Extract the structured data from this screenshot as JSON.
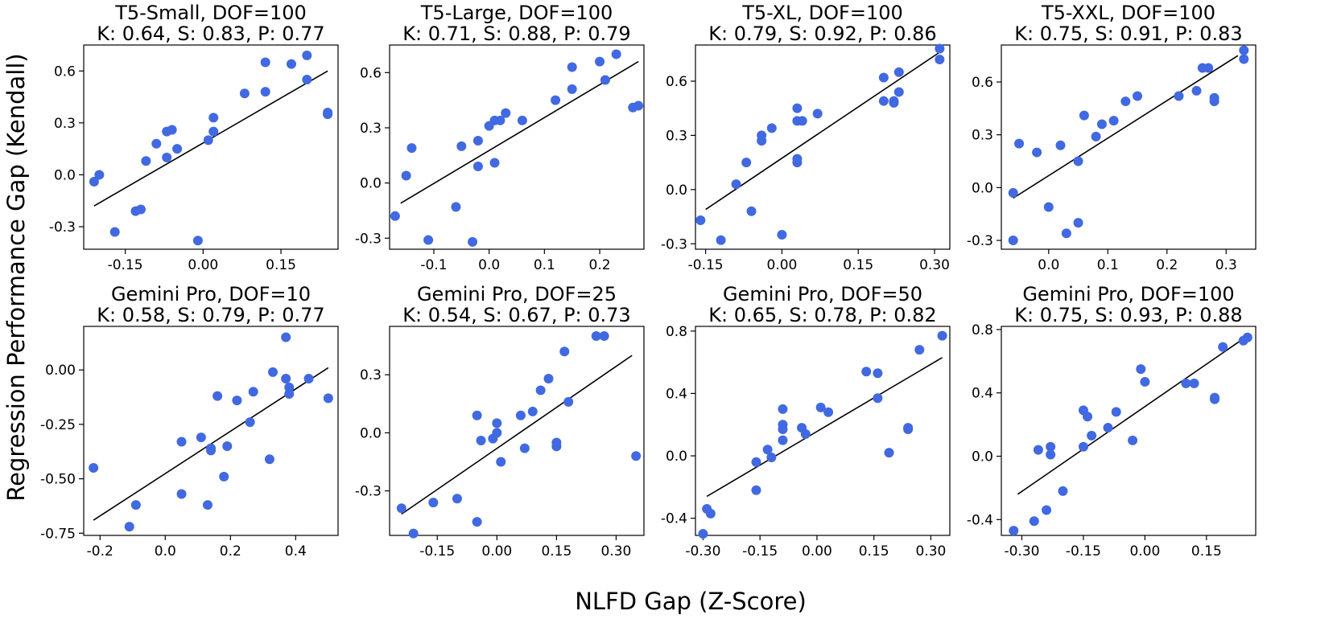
{
  "figure": {
    "ylabel": "Regression Performance Gap (Kendall)",
    "xlabel": "NLFD Gap (Z-Score)",
    "point_color": "#4169E1",
    "line_color": "#000000"
  },
  "chart_data": [
    {
      "type": "scatter",
      "title": "T5-Small, DOF=100",
      "subtitle": "K: 0.64, S: 0.83, P: 0.77",
      "xlim": [
        -0.23,
        0.26
      ],
      "ylim": [
        -0.43,
        0.75
      ],
      "xticks": [
        -0.15,
        0.0,
        0.15
      ],
      "xtick_labels": [
        "-0.15",
        "0.00",
        "0.15"
      ],
      "yticks": [
        -0.3,
        0.0,
        0.3,
        0.6
      ],
      "ytick_labels": [
        "-0.3",
        "0.0",
        "0.3",
        "0.6"
      ],
      "fit": [
        [
          -0.21,
          -0.18
        ],
        [
          0.24,
          0.6
        ]
      ],
      "points": [
        [
          -0.21,
          -0.04
        ],
        [
          -0.2,
          0.0
        ],
        [
          -0.17,
          -0.33
        ],
        [
          -0.12,
          -0.2
        ],
        [
          -0.11,
          0.08
        ],
        [
          -0.13,
          -0.21
        ],
        [
          -0.09,
          0.18
        ],
        [
          -0.07,
          0.1
        ],
        [
          -0.07,
          0.25
        ],
        [
          -0.06,
          0.26
        ],
        [
          -0.05,
          0.15
        ],
        [
          -0.01,
          -0.38
        ],
        [
          0.01,
          0.2
        ],
        [
          0.02,
          0.25
        ],
        [
          0.02,
          0.33
        ],
        [
          0.08,
          0.47
        ],
        [
          0.12,
          0.48
        ],
        [
          0.12,
          0.65
        ],
        [
          0.17,
          0.64
        ],
        [
          0.2,
          0.69
        ],
        [
          0.2,
          0.55
        ],
        [
          0.24,
          0.36
        ],
        [
          0.24,
          0.35
        ]
      ]
    },
    {
      "type": "scatter",
      "title": "T5-Large, DOF=100",
      "subtitle": "K: 0.71, S: 0.88, P: 0.79",
      "xlim": [
        -0.18,
        0.28
      ],
      "ylim": [
        -0.36,
        0.75
      ],
      "xticks": [
        -0.1,
        0.0,
        0.1,
        0.2
      ],
      "xtick_labels": [
        "-0.1",
        "0.0",
        "0.1",
        "0.2"
      ],
      "yticks": [
        -0.3,
        0.0,
        0.3,
        0.6
      ],
      "ytick_labels": [
        "-0.3",
        "0.0",
        "0.3",
        "0.6"
      ],
      "fit": [
        [
          -0.16,
          -0.11
        ],
        [
          0.27,
          0.66
        ]
      ],
      "points": [
        [
          -0.17,
          -0.18
        ],
        [
          -0.15,
          0.04
        ],
        [
          -0.14,
          0.19
        ],
        [
          -0.11,
          -0.31
        ],
        [
          -0.06,
          -0.13
        ],
        [
          -0.05,
          0.2
        ],
        [
          -0.03,
          -0.32
        ],
        [
          -0.02,
          0.23
        ],
        [
          -0.02,
          0.09
        ],
        [
          0.0,
          0.31
        ],
        [
          0.01,
          0.34
        ],
        [
          0.01,
          0.11
        ],
        [
          0.02,
          0.34
        ],
        [
          0.03,
          0.38
        ],
        [
          0.06,
          0.34
        ],
        [
          0.12,
          0.45
        ],
        [
          0.15,
          0.63
        ],
        [
          0.15,
          0.51
        ],
        [
          0.2,
          0.66
        ],
        [
          0.21,
          0.56
        ],
        [
          0.23,
          0.7
        ],
        [
          0.26,
          0.41
        ],
        [
          0.27,
          0.42
        ]
      ]
    },
    {
      "type": "scatter",
      "title": "T5-XL, DOF=100",
      "subtitle": "K: 0.79, S: 0.92, P: 0.86",
      "xlim": [
        -0.17,
        0.33
      ],
      "ylim": [
        -0.33,
        0.8
      ],
      "xticks": [
        -0.15,
        0.0,
        0.15,
        0.3
      ],
      "xtick_labels": [
        "-0.15",
        "0.00",
        "0.15",
        "0.30"
      ],
      "yticks": [
        -0.3,
        0.0,
        0.3,
        0.6
      ],
      "ytick_labels": [
        "-0.3",
        "0.0",
        "0.3",
        "0.6"
      ],
      "fit": [
        [
          -0.15,
          -0.11
        ],
        [
          0.31,
          0.76
        ]
      ],
      "points": [
        [
          -0.16,
          -0.17
        ],
        [
          -0.12,
          -0.28
        ],
        [
          -0.09,
          0.03
        ],
        [
          -0.07,
          0.15
        ],
        [
          -0.06,
          -0.12
        ],
        [
          -0.04,
          0.27
        ],
        [
          -0.04,
          0.3
        ],
        [
          -0.02,
          0.34
        ],
        [
          0.0,
          -0.25
        ],
        [
          0.03,
          0.15
        ],
        [
          0.03,
          0.17
        ],
        [
          0.03,
          0.45
        ],
        [
          0.03,
          0.38
        ],
        [
          0.04,
          0.38
        ],
        [
          0.07,
          0.42
        ],
        [
          0.2,
          0.62
        ],
        [
          0.2,
          0.49
        ],
        [
          0.22,
          0.48
        ],
        [
          0.22,
          0.49
        ],
        [
          0.23,
          0.65
        ],
        [
          0.23,
          0.54
        ],
        [
          0.31,
          0.78
        ],
        [
          0.31,
          0.72
        ]
      ]
    },
    {
      "type": "scatter",
      "title": "T5-XXL, DOF=100",
      "subtitle": "K: 0.75, S: 0.91, P: 0.83",
      "xlim": [
        -0.08,
        0.35
      ],
      "ylim": [
        -0.35,
        0.81
      ],
      "xticks": [
        0.0,
        0.1,
        0.2,
        0.3
      ],
      "xtick_labels": [
        "0.0",
        "0.1",
        "0.2",
        "0.3"
      ],
      "yticks": [
        -0.3,
        0.0,
        0.3,
        0.6
      ],
      "ytick_labels": [
        "-0.3",
        "0.0",
        "0.3",
        "0.6"
      ],
      "fit": [
        [
          -0.06,
          -0.06
        ],
        [
          0.32,
          0.75
        ]
      ],
      "points": [
        [
          -0.06,
          -0.03
        ],
        [
          -0.06,
          -0.3
        ],
        [
          -0.05,
          0.25
        ],
        [
          -0.02,
          0.2
        ],
        [
          0.0,
          -0.11
        ],
        [
          0.02,
          0.24
        ],
        [
          0.03,
          -0.26
        ],
        [
          0.05,
          0.15
        ],
        [
          0.05,
          -0.2
        ],
        [
          0.06,
          0.41
        ],
        [
          0.08,
          0.29
        ],
        [
          0.09,
          0.36
        ],
        [
          0.11,
          0.38
        ],
        [
          0.13,
          0.49
        ],
        [
          0.15,
          0.52
        ],
        [
          0.22,
          0.52
        ],
        [
          0.25,
          0.55
        ],
        [
          0.26,
          0.68
        ],
        [
          0.27,
          0.68
        ],
        [
          0.28,
          0.49
        ],
        [
          0.28,
          0.51
        ],
        [
          0.33,
          0.73
        ],
        [
          0.33,
          0.78
        ]
      ]
    },
    {
      "type": "scatter",
      "title": "Gemini Pro, DOF=10",
      "subtitle": "K: 0.58, S: 0.79, P: 0.77",
      "xlim": [
        -0.25,
        0.53
      ],
      "ylim": [
        -0.76,
        0.2
      ],
      "xticks": [
        -0.2,
        0.0,
        0.2,
        0.4
      ],
      "xtick_labels": [
        "-0.2",
        "0.0",
        "0.2",
        "0.4"
      ],
      "yticks": [
        -0.75,
        -0.5,
        -0.25,
        0.0
      ],
      "ytick_labels": [
        "-0.75",
        "-0.50",
        "-0.25",
        "0.00"
      ],
      "fit": [
        [
          -0.22,
          -0.69
        ],
        [
          0.5,
          0.01
        ]
      ],
      "points": [
        [
          -0.22,
          -0.45
        ],
        [
          -0.11,
          -0.72
        ],
        [
          -0.09,
          -0.62
        ],
        [
          0.05,
          -0.33
        ],
        [
          0.05,
          -0.57
        ],
        [
          0.11,
          -0.31
        ],
        [
          0.13,
          -0.62
        ],
        [
          0.14,
          -0.36
        ],
        [
          0.14,
          -0.37
        ],
        [
          0.16,
          -0.12
        ],
        [
          0.18,
          -0.49
        ],
        [
          0.19,
          -0.35
        ],
        [
          0.22,
          -0.14
        ],
        [
          0.26,
          -0.24
        ],
        [
          0.27,
          -0.1
        ],
        [
          0.32,
          -0.41
        ],
        [
          0.33,
          -0.01
        ],
        [
          0.37,
          0.15
        ],
        [
          0.37,
          -0.04
        ],
        [
          0.38,
          -0.08
        ],
        [
          0.38,
          -0.11
        ],
        [
          0.44,
          -0.04
        ],
        [
          0.5,
          -0.13
        ]
      ]
    },
    {
      "type": "scatter",
      "title": "Gemini Pro, DOF=25",
      "subtitle": "K: 0.54, S: 0.67, P: 0.73",
      "xlim": [
        -0.27,
        0.37
      ],
      "ylim": [
        -0.53,
        0.55
      ],
      "xticks": [
        -0.15,
        0.0,
        0.15,
        0.3
      ],
      "xtick_labels": [
        "-0.15",
        "0.00",
        "0.15",
        "0.30"
      ],
      "yticks": [
        -0.3,
        0.0,
        0.3
      ],
      "ytick_labels": [
        "-0.3",
        "0.0",
        "0.3"
      ],
      "fit": [
        [
          -0.24,
          -0.42
        ],
        [
          0.34,
          0.4
        ]
      ],
      "points": [
        [
          -0.24,
          -0.39
        ],
        [
          -0.21,
          -0.52
        ],
        [
          -0.16,
          -0.36
        ],
        [
          -0.1,
          -0.34
        ],
        [
          -0.05,
          -0.46
        ],
        [
          -0.05,
          0.09
        ],
        [
          -0.04,
          -0.04
        ],
        [
          -0.01,
          -0.03
        ],
        [
          0.0,
          0.05
        ],
        [
          0.0,
          0.0
        ],
        [
          0.01,
          -0.15
        ],
        [
          0.06,
          0.09
        ],
        [
          0.07,
          -0.08
        ],
        [
          0.09,
          0.11
        ],
        [
          0.11,
          0.22
        ],
        [
          0.13,
          0.28
        ],
        [
          0.15,
          -0.05
        ],
        [
          0.15,
          -0.07
        ],
        [
          0.17,
          0.42
        ],
        [
          0.18,
          0.16
        ],
        [
          0.25,
          0.5
        ],
        [
          0.27,
          0.5
        ],
        [
          0.35,
          -0.12
        ]
      ]
    },
    {
      "type": "scatter",
      "title": "Gemini Pro, DOF=50",
      "subtitle": "K: 0.65, S: 0.78, P: 0.82",
      "xlim": [
        -0.32,
        0.35
      ],
      "ylim": [
        -0.51,
        0.83
      ],
      "xticks": [
        -0.3,
        -0.15,
        0.0,
        0.15,
        0.3
      ],
      "xtick_labels": [
        "-0.30",
        "-0.15",
        "0.00",
        "0.15",
        "0.30"
      ],
      "yticks": [
        -0.4,
        0.0,
        0.4,
        0.8
      ],
      "ytick_labels": [
        "-0.4",
        "0.0",
        "0.4",
        "0.8"
      ],
      "fit": [
        [
          -0.29,
          -0.26
        ],
        [
          0.33,
          0.63
        ]
      ],
      "points": [
        [
          -0.3,
          -0.5
        ],
        [
          -0.29,
          -0.34
        ],
        [
          -0.28,
          -0.37
        ],
        [
          -0.16,
          -0.22
        ],
        [
          -0.16,
          -0.04
        ],
        [
          -0.13,
          0.04
        ],
        [
          -0.12,
          -0.01
        ],
        [
          -0.09,
          0.2
        ],
        [
          -0.09,
          0.17
        ],
        [
          -0.09,
          0.1
        ],
        [
          -0.09,
          0.3
        ],
        [
          -0.04,
          0.18
        ],
        [
          -0.03,
          0.14
        ],
        [
          0.01,
          0.31
        ],
        [
          0.03,
          0.28
        ],
        [
          0.13,
          0.54
        ],
        [
          0.16,
          0.37
        ],
        [
          0.16,
          0.53
        ],
        [
          0.19,
          0.02
        ],
        [
          0.24,
          0.18
        ],
        [
          0.24,
          0.17
        ],
        [
          0.27,
          0.68
        ],
        [
          0.33,
          0.77
        ]
      ]
    },
    {
      "type": "scatter",
      "title": "Gemini Pro, DOF=100",
      "subtitle": "K: 0.75, S: 0.93, P: 0.88",
      "xlim": [
        -0.35,
        0.27
      ],
      "ylim": [
        -0.5,
        0.82
      ],
      "xticks": [
        -0.3,
        -0.15,
        0.0,
        0.15
      ],
      "xtick_labels": [
        "-0.30",
        "-0.15",
        "0.00",
        "0.15"
      ],
      "yticks": [
        -0.4,
        0.0,
        0.4,
        0.8
      ],
      "ytick_labels": [
        "-0.4",
        "0.0",
        "0.4",
        "0.8"
      ],
      "fit": [
        [
          -0.31,
          -0.24
        ],
        [
          0.25,
          0.76
        ]
      ],
      "points": [
        [
          -0.32,
          -0.47
        ],
        [
          -0.27,
          -0.41
        ],
        [
          -0.26,
          0.04
        ],
        [
          -0.24,
          -0.34
        ],
        [
          -0.23,
          0.06
        ],
        [
          -0.23,
          0.01
        ],
        [
          -0.2,
          -0.22
        ],
        [
          -0.15,
          0.06
        ],
        [
          -0.15,
          0.29
        ],
        [
          -0.14,
          0.25
        ],
        [
          -0.13,
          0.13
        ],
        [
          -0.09,
          0.18
        ],
        [
          -0.07,
          0.28
        ],
        [
          -0.03,
          0.1
        ],
        [
          -0.01,
          0.55
        ],
        [
          0.0,
          0.47
        ],
        [
          0.1,
          0.46
        ],
        [
          0.12,
          0.46
        ],
        [
          0.17,
          0.36
        ],
        [
          0.17,
          0.37
        ],
        [
          0.19,
          0.69
        ],
        [
          0.24,
          0.73
        ],
        [
          0.25,
          0.75
        ]
      ]
    }
  ]
}
